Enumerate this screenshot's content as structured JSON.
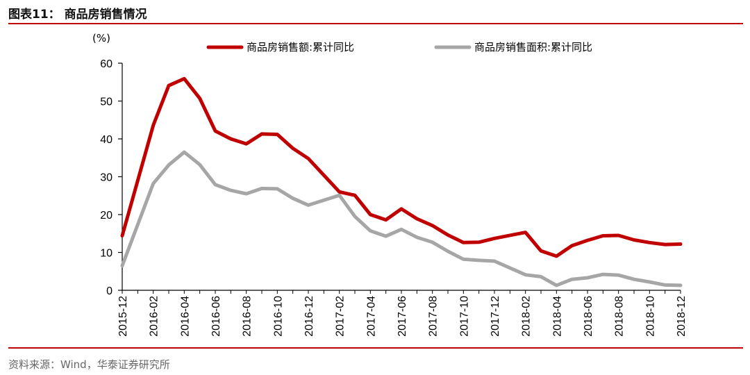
{
  "header": {
    "title": "图表11：  商品房销售情况"
  },
  "footer": {
    "source": "资料来源：Wind，华泰证券研究所"
  },
  "colors": {
    "accent": "#c00000",
    "series_sales_value": "#c00000",
    "series_sales_area": "#a6a6a6"
  },
  "chart_data": {
    "type": "line",
    "title": "",
    "ylabel": "(%)",
    "xlabel": "",
    "ylim": [
      0,
      60
    ],
    "yticks": [
      0,
      10,
      20,
      30,
      40,
      50,
      60
    ],
    "grid": false,
    "legend_position": "top",
    "x": [
      "2015-12",
      "2016-01",
      "2016-02",
      "2016-03",
      "2016-04",
      "2016-05",
      "2016-06",
      "2016-07",
      "2016-08",
      "2016-09",
      "2016-10",
      "2016-11",
      "2016-12",
      "2017-01",
      "2017-02",
      "2017-03",
      "2017-04",
      "2017-05",
      "2017-06",
      "2017-07",
      "2017-08",
      "2017-09",
      "2017-10",
      "2017-11",
      "2017-12",
      "2018-01",
      "2018-02",
      "2018-03",
      "2018-04",
      "2018-05",
      "2018-06",
      "2018-07",
      "2018-08",
      "2018-09",
      "2018-10",
      "2018-11",
      "2018-12"
    ],
    "xtick_labels": [
      "2015-12",
      "2016-02",
      "2016-04",
      "2016-06",
      "2016-08",
      "2016-10",
      "2016-12",
      "2017-02",
      "2017-04",
      "2017-06",
      "2017-08",
      "2017-10",
      "2017-12",
      "2018-02",
      "2018-04",
      "2018-06",
      "2018-08",
      "2018-10",
      "2018-12"
    ],
    "series": [
      {
        "name": "商品房销售额:累计同比",
        "values": [
          14.4,
          null,
          43.6,
          54.1,
          55.9,
          50.7,
          42.1,
          40.0,
          38.7,
          41.3,
          41.2,
          37.5,
          34.8,
          null,
          26.0,
          25.1,
          20.0,
          18.6,
          21.5,
          18.9,
          17.1,
          14.6,
          12.6,
          12.7,
          13.7,
          null,
          15.3,
          10.4,
          9.0,
          11.8,
          13.2,
          14.4,
          14.5,
          13.3,
          12.6,
          12.1,
          12.2
        ]
      },
      {
        "name": "商品房销售面积:累计同比",
        "values": [
          6.5,
          null,
          28.2,
          33.1,
          36.5,
          33.2,
          27.9,
          26.4,
          25.5,
          26.9,
          26.8,
          24.3,
          22.5,
          null,
          25.1,
          19.5,
          15.7,
          14.3,
          16.1,
          14.0,
          12.7,
          10.3,
          8.2,
          7.9,
          7.7,
          null,
          4.1,
          3.6,
          1.3,
          2.9,
          3.3,
          4.2,
          4.0,
          2.9,
          2.2,
          1.4,
          1.3
        ]
      }
    ]
  }
}
